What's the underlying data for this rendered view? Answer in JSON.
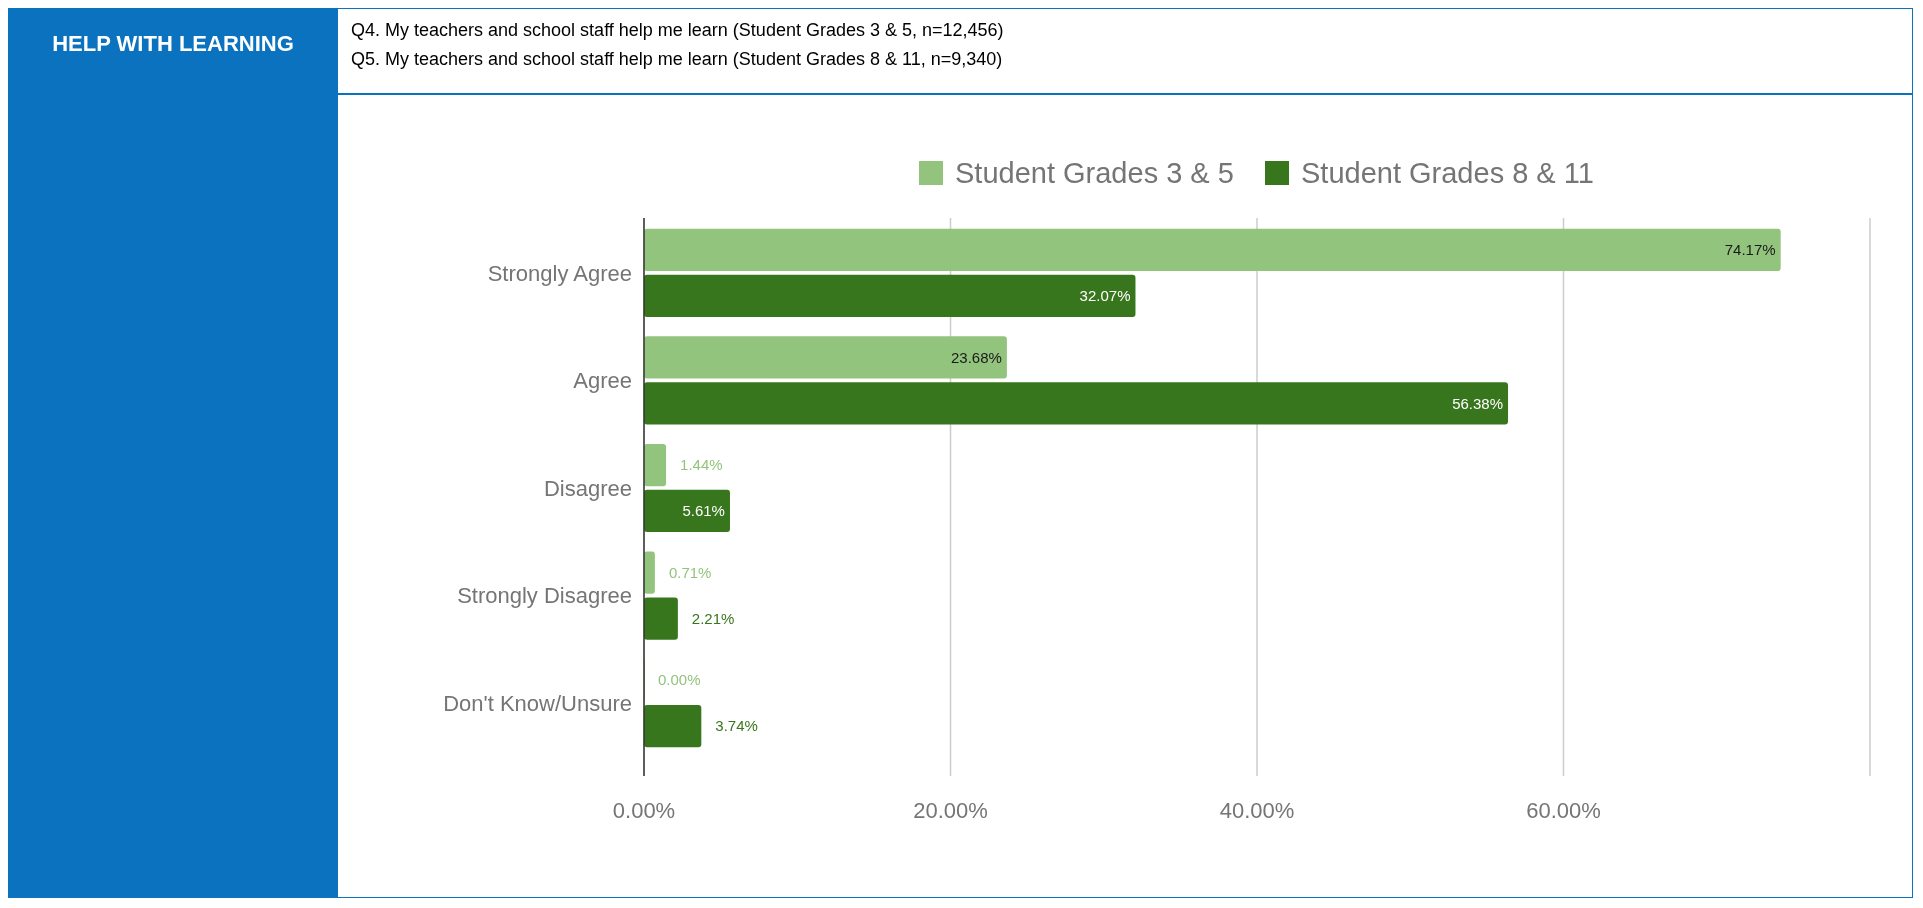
{
  "chart_data": {
    "type": "bar",
    "orientation": "horizontal",
    "title": "HELP WITH LEARNING",
    "subtitle": "Q4. My teachers and school staff help me learn (Student Grades 3 & 5, n=12,456)\nQ5. My teachers and school staff help me learn (Student Grades 8 & 11, n=9,340)",
    "categories": [
      "Strongly Agree",
      "Agree",
      "Disagree",
      "Strongly Disagree",
      "Don't Know/Unsure"
    ],
    "series": [
      {
        "name": "Student Grades 3 & 5",
        "color": "#93c47d",
        "values": [
          74.17,
          23.68,
          1.44,
          0.71,
          0
        ],
        "value_labels": [
          "74.17%",
          "23.68%",
          "1.44%",
          "0.71%",
          "0.00%"
        ]
      },
      {
        "name": "Student Grades 8 & 11",
        "color": "#38761d",
        "values": [
          32.07,
          56.38,
          5.61,
          2.21,
          3.74
        ],
        "value_labels": [
          "32.07%",
          "56.38%",
          "5.61%",
          "2.21%",
          "3.74%"
        ]
      }
    ],
    "xlim": [
      0,
      80
    ],
    "xticks": [
      {
        "value": 0,
        "label": "0.00%"
      },
      {
        "value": 20,
        "label": "20.00%"
      },
      {
        "value": 40,
        "label": "40.00%"
      },
      {
        "value": 60,
        "label": "60.00%"
      },
      {
        "value": 80,
        "label": null
      }
    ],
    "grid": "x",
    "legend": "top"
  }
}
